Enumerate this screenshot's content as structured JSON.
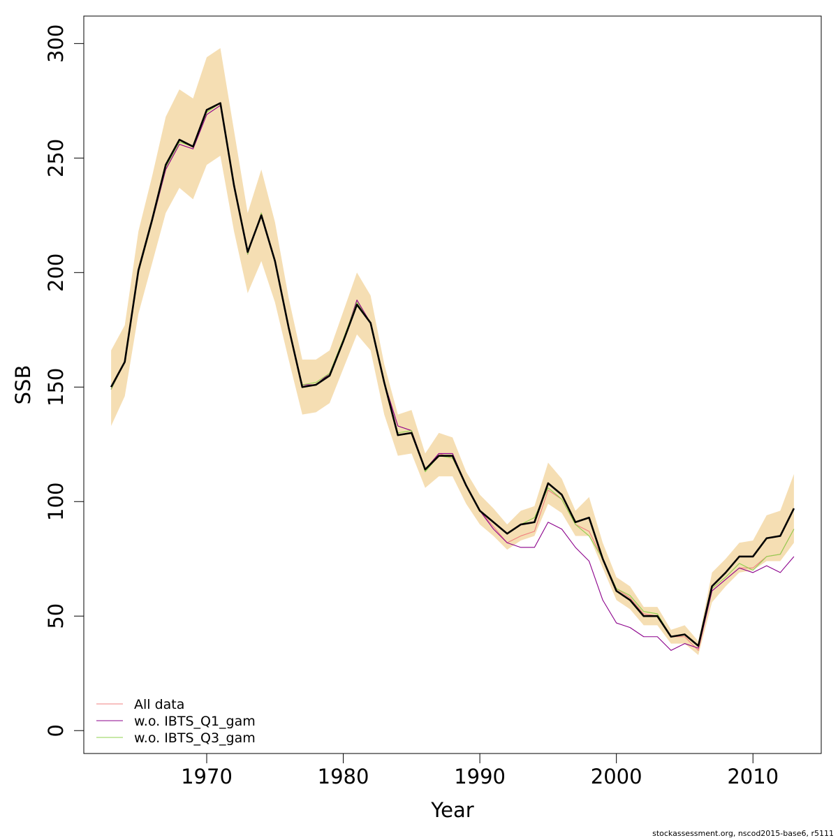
{
  "chart_data": {
    "type": "line",
    "title": "",
    "xlabel": "Year",
    "ylabel": "SSB",
    "xlim": [
      1961,
      2015
    ],
    "ylim": [
      -10,
      312
    ],
    "x_ticks": [
      1970,
      1980,
      1990,
      2000,
      2010
    ],
    "y_ticks": [
      0,
      50,
      100,
      150,
      200,
      250,
      300
    ],
    "grid": false,
    "legend_position": "bottom-left",
    "credit": "stockassessment.org, nscod2015-base6, r5111",
    "x": [
      1963,
      1964,
      1965,
      1966,
      1967,
      1968,
      1969,
      1970,
      1971,
      1972,
      1973,
      1974,
      1975,
      1976,
      1977,
      1978,
      1979,
      1980,
      1981,
      1982,
      1983,
      1984,
      1985,
      1986,
      1987,
      1988,
      1989,
      1990,
      1991,
      1992,
      1993,
      1994,
      1995,
      1996,
      1997,
      1998,
      1999,
      2000,
      2001,
      2002,
      2003,
      2004,
      2005,
      2006,
      2007,
      2008,
      2009,
      2010,
      2011,
      2012,
      2013
    ],
    "confidence_band": {
      "color": "#f5deb3",
      "lower": [
        133,
        146,
        182,
        204,
        226,
        237,
        232,
        247,
        251,
        218,
        191,
        205,
        187,
        162,
        138,
        139,
        143,
        158,
        173,
        166,
        138,
        120,
        121,
        106,
        111,
        111,
        99,
        90,
        85,
        79,
        83,
        85,
        99,
        95,
        85,
        85,
        71,
        57,
        53,
        46,
        46,
        38,
        38,
        33,
        56,
        63,
        69,
        70,
        74,
        74,
        82
      ],
      "upper": [
        166,
        177,
        218,
        242,
        268,
        280,
        276,
        294,
        298,
        262,
        226,
        245,
        222,
        189,
        162,
        162,
        166,
        183,
        200,
        190,
        160,
        138,
        140,
        121,
        130,
        128,
        113,
        103,
        97,
        90,
        96,
        98,
        117,
        110,
        96,
        102,
        82,
        67,
        63,
        54,
        54,
        44,
        46,
        39,
        69,
        75,
        82,
        83,
        94,
        96,
        112
      ]
    },
    "series": [
      {
        "name": "All data",
        "color": "#f08080",
        "values": [
          149,
          161,
          200,
          222,
          245,
          256,
          254,
          269,
          273,
          238,
          208,
          226,
          205,
          176,
          151,
          151,
          156,
          170,
          188,
          178,
          152,
          133,
          131,
          114,
          121,
          119,
          107,
          96,
          89,
          82,
          85,
          87,
          105,
          101,
          90,
          87,
          75,
          62,
          58,
          51,
          50,
          41,
          41,
          35,
          61,
          66,
          71,
          71,
          76,
          77,
          88
        ]
      },
      {
        "name": "w.o. IBTS_Q1_gam",
        "color": "#8b008b",
        "values": [
          149,
          161,
          200,
          222,
          245,
          256,
          254,
          269,
          273,
          238,
          208,
          226,
          205,
          176,
          151,
          151,
          156,
          170,
          188,
          178,
          152,
          133,
          131,
          114,
          121,
          121,
          107,
          96,
          88,
          82,
          80,
          80,
          91,
          88,
          80,
          74,
          57,
          47,
          45,
          41,
          41,
          35,
          38,
          36,
          61,
          66,
          71,
          69,
          72,
          69,
          76
        ]
      },
      {
        "name": "w.o. IBTS_Q3_gam",
        "color": "#8fd14f",
        "values": [
          149,
          161,
          200,
          222,
          246,
          257,
          255,
          270,
          274,
          238,
          208,
          226,
          205,
          176,
          151,
          152,
          156,
          171,
          187,
          178,
          152,
          130,
          131,
          113,
          120,
          119,
          107,
          96,
          91,
          86,
          90,
          93,
          106,
          101,
          90,
          85,
          75,
          62,
          59,
          52,
          51,
          41,
          42,
          37,
          62,
          67,
          73,
          70,
          76,
          77,
          88
        ]
      },
      {
        "name": "",
        "color": "#000000",
        "values": [
          150,
          161,
          201,
          223,
          247,
          258,
          255,
          271,
          274,
          238,
          209,
          225,
          205,
          176,
          150,
          151,
          155,
          170,
          186,
          178,
          152,
          129,
          130,
          114,
          120,
          120,
          107,
          96,
          91,
          86,
          90,
          91,
          108,
          103,
          91,
          93,
          75,
          61,
          57,
          50,
          50,
          41,
          42,
          37,
          63,
          69,
          76,
          76,
          84,
          85,
          97
        ]
      }
    ]
  }
}
